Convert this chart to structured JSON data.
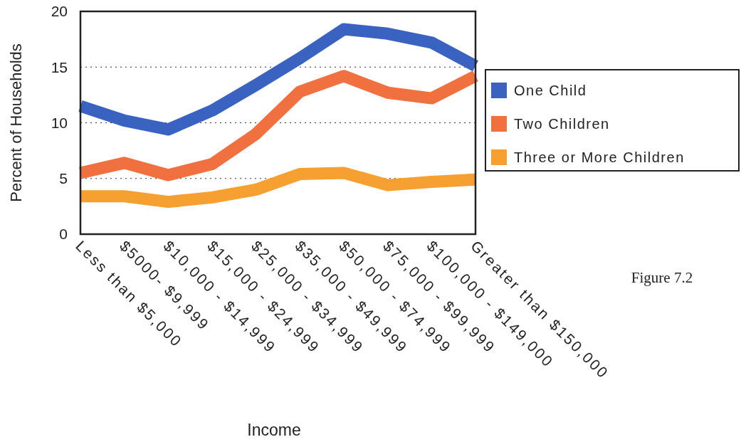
{
  "chart_data": {
    "type": "line",
    "xlabel": "Income",
    "ylabel": "Percent of Households",
    "categories": [
      "Less than $5,000",
      "$5000- $9,999",
      "$10,000 - $14,999",
      "$15,000 - $24,999",
      "$25,000 - $34,999",
      "$35,000 - $49,999",
      "$50,000 - $74,999",
      "$75,000 - $99,999",
      "$100,000 - $149,000",
      "Greater than $150,000"
    ],
    "series": [
      {
        "name": "One Child",
        "color": "#3a62c0",
        "values": [
          11.5,
          10.2,
          9.4,
          11.1,
          13.4,
          15.8,
          18.4,
          18.0,
          17.2,
          15.1
        ]
      },
      {
        "name": "Two Children",
        "color": "#f07040",
        "values": [
          5.5,
          6.4,
          5.3,
          6.3,
          9.0,
          12.8,
          14.2,
          12.7,
          12.2,
          14.2
        ]
      },
      {
        "name": "Three or More Children",
        "color": "#f5a030",
        "values": [
          3.4,
          3.4,
          2.9,
          3.3,
          4.0,
          5.4,
          5.5,
          4.4,
          4.7,
          4.9
        ]
      }
    ],
    "ylim": [
      0,
      20
    ],
    "yticks": [
      0,
      5,
      10,
      15,
      20
    ],
    "grid": "y",
    "legend": "right",
    "marker": "none",
    "line_style": "solid",
    "annotations": [
      "Figure 7.2"
    ]
  }
}
